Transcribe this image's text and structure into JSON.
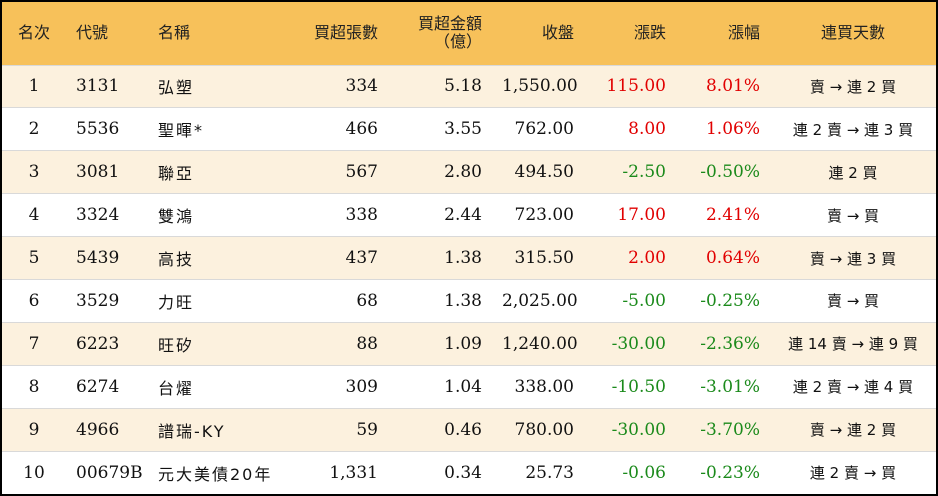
{
  "colors": {
    "header_bg": "#f7c15a",
    "row_odd_bg": "#fcf1de",
    "row_even_bg": "#ffffff",
    "up": "#e10000",
    "down": "#1b8a1b"
  },
  "headers": [
    "名次",
    "代號",
    "名稱",
    "買超張數",
    "買超金額\n（億）",
    "收盤",
    "漲跌",
    "漲幅",
    "連買天數"
  ],
  "rows": [
    {
      "rank": "1",
      "code": "3131",
      "name": "弘塑",
      "lots": "334",
      "amount": "5.18",
      "close": "1,550.00",
      "change": "115.00",
      "pct": "8.01%",
      "days": "賣 → 連 2 買",
      "dir": "up"
    },
    {
      "rank": "2",
      "code": "5536",
      "name": "聖暉*",
      "lots": "466",
      "amount": "3.55",
      "close": "762.00",
      "change": "8.00",
      "pct": "1.06%",
      "days": "連 2 賣 → 連 3 買",
      "dir": "up"
    },
    {
      "rank": "3",
      "code": "3081",
      "name": "聯亞",
      "lots": "567",
      "amount": "2.80",
      "close": "494.50",
      "change": "-2.50",
      "pct": "-0.50%",
      "days": "連 2 買",
      "dir": "down"
    },
    {
      "rank": "4",
      "code": "3324",
      "name": "雙鴻",
      "lots": "338",
      "amount": "2.44",
      "close": "723.00",
      "change": "17.00",
      "pct": "2.41%",
      "days": "賣 → 買",
      "dir": "up"
    },
    {
      "rank": "5",
      "code": "5439",
      "name": "高技",
      "lots": "437",
      "amount": "1.38",
      "close": "315.50",
      "change": "2.00",
      "pct": "0.64%",
      "days": "賣 → 連 3 買",
      "dir": "up"
    },
    {
      "rank": "6",
      "code": "3529",
      "name": "力旺",
      "lots": "68",
      "amount": "1.38",
      "close": "2,025.00",
      "change": "-5.00",
      "pct": "-0.25%",
      "days": "賣 → 買",
      "dir": "down"
    },
    {
      "rank": "7",
      "code": "6223",
      "name": "旺矽",
      "lots": "88",
      "amount": "1.09",
      "close": "1,240.00",
      "change": "-30.00",
      "pct": "-2.36%",
      "days": "連 14 賣 → 連 9 買",
      "dir": "down"
    },
    {
      "rank": "8",
      "code": "6274",
      "name": "台燿",
      "lots": "309",
      "amount": "1.04",
      "close": "338.00",
      "change": "-10.50",
      "pct": "-3.01%",
      "days": "連 2 賣 → 連 4 買",
      "dir": "down"
    },
    {
      "rank": "9",
      "code": "4966",
      "name": "譜瑞-KY",
      "lots": "59",
      "amount": "0.46",
      "close": "780.00",
      "change": "-30.00",
      "pct": "-3.70%",
      "days": "賣 → 連 2 買",
      "dir": "down"
    },
    {
      "rank": "10",
      "code": "00679B",
      "name": "元大美債20年",
      "lots": "1,331",
      "amount": "0.34",
      "close": "25.73",
      "change": "-0.06",
      "pct": "-0.23%",
      "days": "連 2 賣 → 買",
      "dir": "down"
    }
  ]
}
